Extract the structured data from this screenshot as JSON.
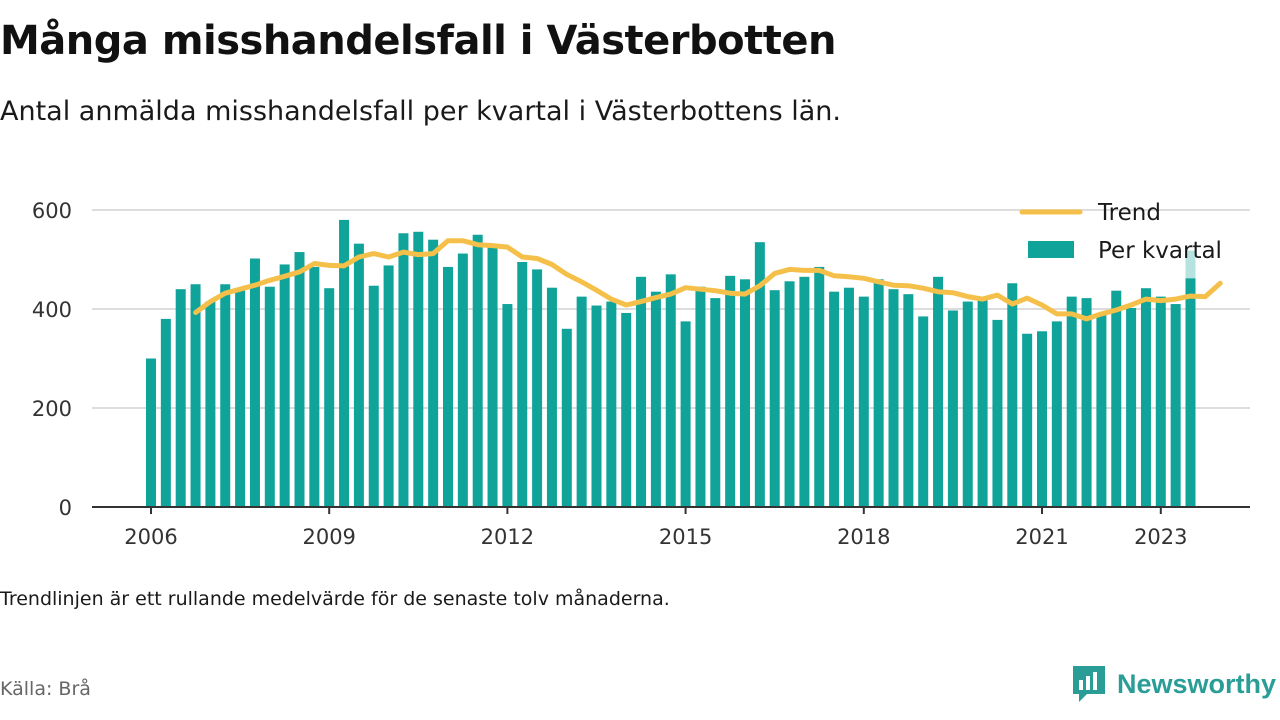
{
  "header": {
    "title": "Många misshandelsfall i Västerbotten",
    "subtitle": "Antal anmälda misshandelsfall per kvartal i Västerbottens län."
  },
  "footer": {
    "note": "Trendlinjen är ett rullande medelvärde för de senaste tolv månaderna.",
    "source": "Källa: Brå",
    "brand": "Newsworthy"
  },
  "colors": {
    "bar": "#0fa39a",
    "bar_highlight": "#b6e3e0",
    "trend": "#f5c04a",
    "axis": "#333333",
    "grid": "#dddddd",
    "brand": "#2a9d97"
  },
  "chart_data": {
    "type": "bar",
    "title": "",
    "xlabel": "",
    "ylabel": "",
    "ylim": [
      0,
      600
    ],
    "yticks": [
      0,
      200,
      400,
      600
    ],
    "xticks": [
      "2006",
      "2009",
      "2012",
      "2015",
      "2018",
      "2021",
      "2023"
    ],
    "grid": true,
    "legend_position": "top-right",
    "series": [
      {
        "name": "Per kvartal",
        "kind": "bar",
        "start": "2006Q1",
        "values": [
          300,
          380,
          440,
          450,
          415,
          450,
          440,
          502,
          445,
          490,
          515,
          485,
          442,
          580,
          532,
          447,
          488,
          553,
          556,
          540,
          485,
          512,
          550,
          528,
          410,
          495,
          480,
          443,
          360,
          425,
          407,
          415,
          392,
          465,
          435,
          470,
          375,
          445,
          422,
          467,
          460,
          535,
          438,
          456,
          465,
          485,
          435,
          443,
          425,
          460,
          440,
          430,
          385,
          465,
          397,
          415,
          420,
          378,
          452,
          350,
          355,
          375,
          425,
          422,
          388,
          437,
          402,
          442,
          425,
          410,
          462
        ],
        "highlight_last": true,
        "highlight_last_top": 518
      },
      {
        "name": "Trend",
        "kind": "line",
        "start": "2006Q4",
        "values": [
          393,
          415,
          432,
          440,
          448,
          458,
          466,
          475,
          492,
          488,
          487,
          505,
          512,
          505,
          515,
          510,
          512,
          538,
          538,
          530,
          528,
          525,
          505,
          502,
          490,
          470,
          455,
          438,
          420,
          408,
          415,
          423,
          430,
          443,
          440,
          437,
          432,
          430,
          447,
          472,
          480,
          478,
          478,
          467,
          465,
          462,
          455,
          448,
          447,
          442,
          435,
          433,
          425,
          420,
          428,
          410,
          422,
          408,
          390,
          390,
          380,
          390,
          398,
          408,
          420,
          417,
          420,
          426,
          425,
          452
        ]
      }
    ]
  }
}
